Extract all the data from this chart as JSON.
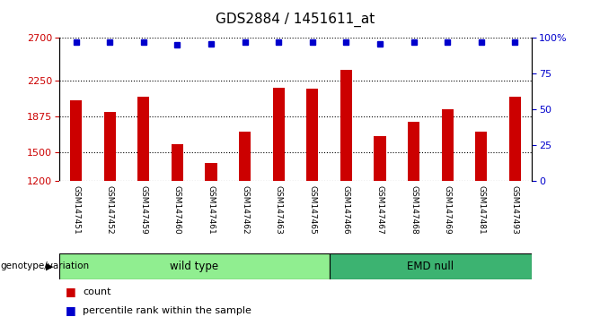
{
  "title": "GDS2884 / 1451611_at",
  "samples": [
    "GSM147451",
    "GSM147452",
    "GSM147459",
    "GSM147460",
    "GSM147461",
    "GSM147462",
    "GSM147463",
    "GSM147465",
    "GSM147466",
    "GSM147467",
    "GSM147468",
    "GSM147469",
    "GSM147481",
    "GSM147493"
  ],
  "counts": [
    2050,
    1920,
    2080,
    1580,
    1390,
    1720,
    2180,
    2170,
    2370,
    1670,
    1820,
    1950,
    1720,
    2080
  ],
  "percentile_ranks": [
    97,
    97,
    97,
    95,
    96,
    97,
    97,
    97,
    97,
    96,
    97,
    97,
    97,
    97
  ],
  "bar_color": "#cc0000",
  "dot_color": "#0000cc",
  "ylim_left": [
    1200,
    2700
  ],
  "ylim_right": [
    0,
    100
  ],
  "yticks_left": [
    1200,
    1500,
    1875,
    2250,
    2700
  ],
  "yticks_right": [
    0,
    25,
    50,
    75,
    100
  ],
  "ytick_labels_right": [
    "0",
    "25",
    "50",
    "75",
    "100%"
  ],
  "groups": [
    {
      "label": "wild type",
      "start": 0,
      "end": 7,
      "color": "#90ee90"
    },
    {
      "label": "EMD null",
      "start": 8,
      "end": 13,
      "color": "#3cb371"
    }
  ],
  "group_label_prefix": "genotype/variation",
  "legend_count_label": "count",
  "legend_percentile_label": "percentile rank within the sample",
  "background_plot": "#ffffff",
  "background_label_row": "#d0d0d0",
  "grid_color": "#000000",
  "tick_label_color_left": "#cc0000",
  "tick_label_color_right": "#0000cc"
}
